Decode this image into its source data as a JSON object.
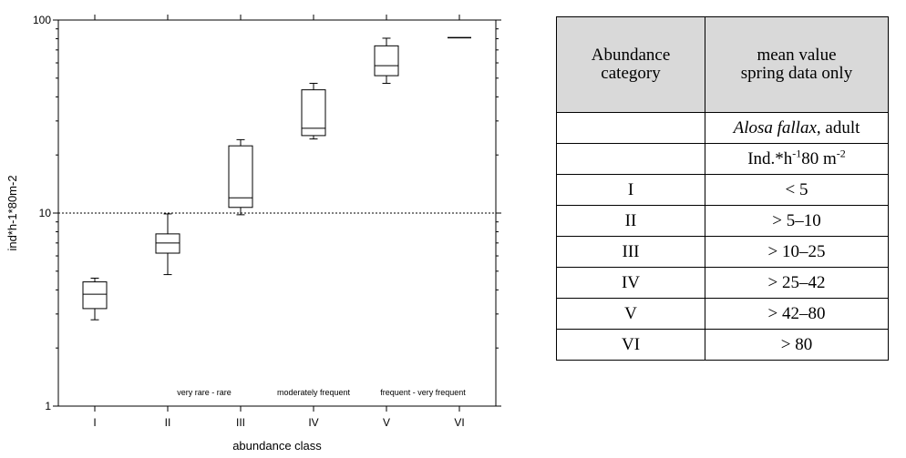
{
  "chart_data": {
    "type": "box",
    "y_scale": "log",
    "ylim": [
      1,
      100
    ],
    "yticks": [
      {
        "value": 1,
        "label": "1"
      },
      {
        "value": 10,
        "label": "10"
      },
      {
        "value": 100,
        "label": "100"
      }
    ],
    "reference_line": {
      "value": 10,
      "style": "dotted"
    },
    "ylabel": "ind*h-1*80m-2",
    "xlabel": "abundance class",
    "categories": [
      "I",
      "II",
      "III",
      "IV",
      "V",
      "VI"
    ],
    "boxes": [
      {
        "category": "I",
        "min": 2.8,
        "q1": 3.2,
        "median": 3.8,
        "q3": 4.4,
        "max": 4.6
      },
      {
        "category": "II",
        "min": 4.8,
        "q1": 6.2,
        "median": 7.0,
        "q3": 7.8,
        "max": 9.9
      },
      {
        "category": "III",
        "min": 9.8,
        "q1": 10.7,
        "median": 12.0,
        "q3": 22.3,
        "max": 24.0
      },
      {
        "category": "IV",
        "min": 24.2,
        "q1": 25.2,
        "median": 27.5,
        "q3": 43.5,
        "max": 47.0
      },
      {
        "category": "V",
        "min": 47.0,
        "q1": 51.5,
        "median": 58.0,
        "q3": 73.5,
        "max": 80.5
      },
      {
        "category": "VI",
        "min": 81.0,
        "q1": 81.0,
        "median": 81.0,
        "q3": 81.0,
        "max": 81.0
      }
    ],
    "annotations": [
      {
        "text": "very rare - rare",
        "between": [
          "II",
          "III"
        ]
      },
      {
        "text": "moderately frequent",
        "between": [
          "III",
          "V"
        ]
      },
      {
        "text": "frequent - very frequent",
        "between": [
          "V",
          "VI"
        ]
      }
    ]
  },
  "table": {
    "header": {
      "col1": [
        "Abundance",
        "category"
      ],
      "col2": [
        "mean value",
        "spring data only"
      ]
    },
    "species_name": "Alosa fallax",
    "species_suffix": ", adult",
    "unit_prefix": "Ind.*h",
    "unit_exp1": "-1",
    "unit_mid": "80 m",
    "unit_exp2": "-2",
    "rows": [
      {
        "category": "I",
        "value": "< 5"
      },
      {
        "category": "II",
        "value": "> 5–10"
      },
      {
        "category": "III",
        "value": "> 10–25"
      },
      {
        "category": "IV",
        "value": "> 25–42"
      },
      {
        "category": "V",
        "value": "> 42–80"
      },
      {
        "category": "VI",
        "value": "> 80"
      }
    ]
  }
}
